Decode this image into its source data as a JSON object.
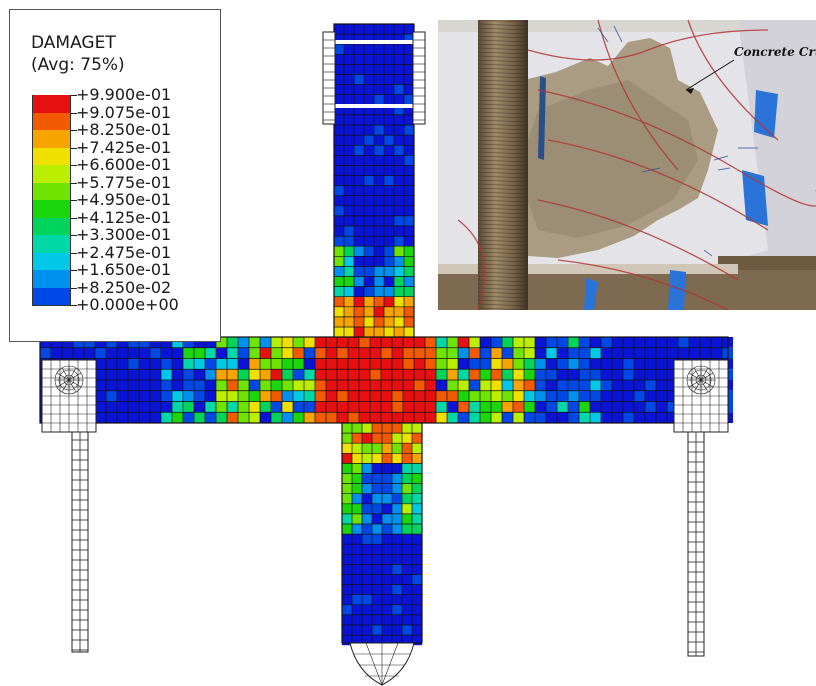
{
  "legend": {
    "title_line1": "DAMAGET",
    "title_line2": "(Avg: 75%)",
    "entries": [
      {
        "label": "+9.900e-01",
        "color": "#e61010"
      },
      {
        "label": "+9.075e-01",
        "color": "#f25a00"
      },
      {
        "label": "+8.250e-01",
        "color": "#f7a300"
      },
      {
        "label": "+7.425e-01",
        "color": "#f0e000"
      },
      {
        "label": "+6.600e-01",
        "color": "#bcee00"
      },
      {
        "label": "+5.775e-01",
        "color": "#6ee400"
      },
      {
        "label": "+4.950e-01",
        "color": "#1bd60a"
      },
      {
        "label": "+4.125e-01",
        "color": "#00d45a"
      },
      {
        "label": "+3.300e-01",
        "color": "#00d8a8"
      },
      {
        "label": "+2.475e-01",
        "color": "#00c8e6"
      },
      {
        "label": "+1.650e-01",
        "color": "#0090ee"
      },
      {
        "label": "+8.250e-02",
        "color": "#0048e6"
      },
      {
        "label": "+0.000e+00",
        "color": "#0a14d6"
      }
    ]
  },
  "photo": {
    "annotation": "Concrete Crushing"
  }
}
